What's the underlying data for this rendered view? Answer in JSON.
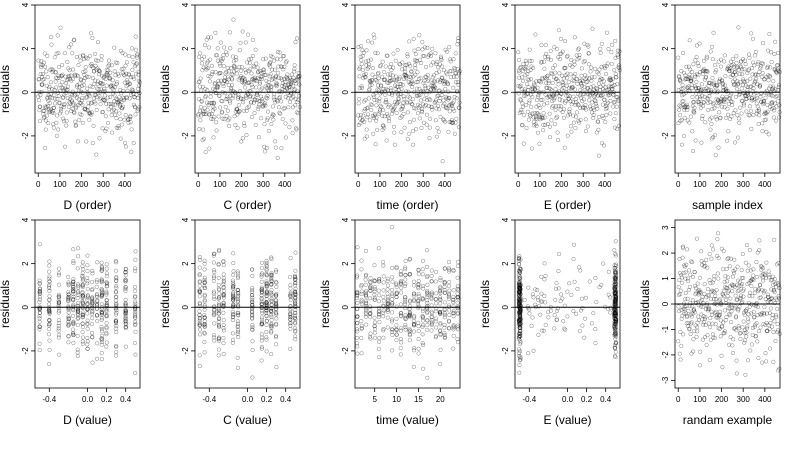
{
  "chart_data": [
    {
      "type": "scatter",
      "xlabel": "D (order)",
      "ylabel": "residuals",
      "xlim": [
        -15,
        470
      ],
      "ylim": [
        -3.7,
        4.0
      ],
      "xticks": [
        0,
        100,
        200,
        300,
        400
      ],
      "xtick_labels": [
        "0",
        "100",
        "200",
        "300",
        "400"
      ],
      "yticks": [
        -2,
        0,
        2,
        4
      ],
      "ytick_labels": [
        "-2",
        "0",
        "2",
        "4"
      ],
      "hline": 0,
      "x_kind": "order",
      "n_points": 470,
      "seed": 11
    },
    {
      "type": "scatter",
      "xlabel": "C (order)",
      "ylabel": "residuals",
      "xlim": [
        -15,
        470
      ],
      "ylim": [
        -3.7,
        4.0
      ],
      "xticks": [
        0,
        100,
        200,
        300,
        400
      ],
      "xtick_labels": [
        "0",
        "100",
        "200",
        "300",
        "400"
      ],
      "yticks": [
        -2,
        0,
        2,
        4
      ],
      "ytick_labels": [
        "-2",
        "0",
        "2",
        "4"
      ],
      "hline": 0,
      "x_kind": "order",
      "n_points": 470,
      "seed": 23
    },
    {
      "type": "scatter",
      "xlabel": "time (order)",
      "ylabel": "residuals",
      "xlim": [
        -15,
        470
      ],
      "ylim": [
        -3.7,
        4.0
      ],
      "xticks": [
        0,
        100,
        200,
        300,
        400
      ],
      "xtick_labels": [
        "0",
        "100",
        "200",
        "300",
        "400"
      ],
      "yticks": [
        -2,
        0,
        2,
        4
      ],
      "ytick_labels": [
        "-2",
        "0",
        "2",
        "4"
      ],
      "hline": 0,
      "x_kind": "order",
      "n_points": 470,
      "seed": 37
    },
    {
      "type": "scatter",
      "xlabel": "E (order)",
      "ylabel": "residuals",
      "xlim": [
        -15,
        470
      ],
      "ylim": [
        -3.7,
        4.0
      ],
      "xticks": [
        0,
        100,
        200,
        300,
        400
      ],
      "xtick_labels": [
        "0",
        "100",
        "200",
        "300",
        "400"
      ],
      "yticks": [
        -2,
        0,
        2,
        4
      ],
      "ytick_labels": [
        "-2",
        "0",
        "2",
        "4"
      ],
      "hline": 0,
      "x_kind": "order",
      "n_points": 470,
      "seed": 41
    },
    {
      "type": "scatter",
      "xlabel": "sample index",
      "ylabel": "residuals",
      "xlim": [
        -15,
        470
      ],
      "ylim": [
        -3.7,
        4.0
      ],
      "xticks": [
        0,
        100,
        200,
        300,
        400
      ],
      "xtick_labels": [
        "0",
        "100",
        "200",
        "300",
        "400"
      ],
      "yticks": [
        -2,
        0,
        2,
        4
      ],
      "ytick_labels": [
        "-2",
        "0",
        "2",
        "4"
      ],
      "hline": 0,
      "x_kind": "order",
      "n_points": 470,
      "seed": 53
    },
    {
      "type": "scatter",
      "xlabel": "D (value)",
      "ylabel": "residuals",
      "xlim": [
        -0.55,
        0.55
      ],
      "ylim": [
        -3.7,
        4.0
      ],
      "xticks": [
        -0.4,
        0.0,
        0.2,
        0.4
      ],
      "xtick_labels": [
        "-0.4",
        "0.0",
        "0.2",
        "0.4"
      ],
      "yticks": [
        -2,
        0,
        2,
        4
      ],
      "ytick_labels": [
        "-2",
        "0",
        "2",
        "4"
      ],
      "hline": 0,
      "x_kind": "levels",
      "levels": [
        -0.5,
        -0.4,
        -0.3,
        -0.2,
        -0.15,
        -0.1,
        -0.05,
        0.0,
        0.05,
        0.1,
        0.15,
        0.2,
        0.3,
        0.4,
        0.5
      ],
      "n_points": 470,
      "seed": 61
    },
    {
      "type": "scatter",
      "xlabel": "C (value)",
      "ylabel": "residuals",
      "xlim": [
        -0.55,
        0.55
      ],
      "ylim": [
        -3.7,
        4.0
      ],
      "xticks": [
        -0.4,
        0.0,
        0.2,
        0.4
      ],
      "xtick_labels": [
        "-0.4",
        "0.0",
        "0.2",
        "0.4"
      ],
      "yticks": [
        -2,
        0,
        2,
        4
      ],
      "ytick_labels": [
        "-2",
        "0",
        "2",
        "4"
      ],
      "hline": 0,
      "x_kind": "levels",
      "levels": [
        -0.5,
        -0.45,
        -0.35,
        -0.3,
        -0.25,
        -0.15,
        -0.1,
        0.05,
        0.15,
        0.2,
        0.25,
        0.3,
        0.45,
        0.5
      ],
      "n_points": 470,
      "seed": 71
    },
    {
      "type": "scatter",
      "xlabel": "time (value)",
      "ylabel": "residuals",
      "xlim": [
        0.5,
        24.5
      ],
      "ylim": [
        -3.7,
        4.0
      ],
      "xticks": [
        5,
        10,
        15,
        20
      ],
      "xtick_labels": [
        "5",
        "10",
        "15",
        "20"
      ],
      "yticks": [
        -2,
        0,
        2,
        4
      ],
      "ytick_labels": [
        "-2",
        "0",
        "2",
        "4"
      ],
      "hline": 0,
      "x_kind": "levels",
      "levels": [
        1,
        2,
        3,
        4,
        5,
        6,
        7,
        8,
        9,
        10,
        11,
        12,
        13,
        14,
        15,
        16,
        17,
        18,
        19,
        20,
        21,
        22,
        23,
        24
      ],
      "n_points": 470,
      "seed": 83
    },
    {
      "type": "scatter",
      "xlabel": "E (value)",
      "ylabel": "residuals",
      "xlim": [
        -0.55,
        0.55
      ],
      "ylim": [
        -3.7,
        4.0
      ],
      "xticks": [
        -0.4,
        0.0,
        0.2,
        0.4
      ],
      "xtick_labels": [
        "-0.4",
        "0.0",
        "0.2",
        "0.4"
      ],
      "yticks": [
        -2,
        0,
        2,
        4
      ],
      "ytick_labels": [
        "-2",
        "0",
        "2",
        "4"
      ],
      "hline": 0,
      "x_kind": "bimodal",
      "levels": [
        -0.5,
        0.5
      ],
      "n_points": 470,
      "seed": 97
    },
    {
      "type": "scatter",
      "xlabel": "randam example",
      "ylabel": "residuals",
      "xlim": [
        -15,
        470
      ],
      "ylim": [
        -3.3,
        3.3
      ],
      "xticks": [
        0,
        100,
        200,
        300,
        400
      ],
      "xtick_labels": [
        "0",
        "100",
        "200",
        "300",
        "400"
      ],
      "yticks": [
        -3,
        -2,
        -1,
        0,
        1,
        2,
        3
      ],
      "ytick_labels": [
        "-3",
        "-2",
        "-1",
        "0",
        "1",
        "2",
        "3"
      ],
      "hline": 0,
      "x_kind": "order",
      "n_points": 470,
      "seed": 101
    }
  ]
}
